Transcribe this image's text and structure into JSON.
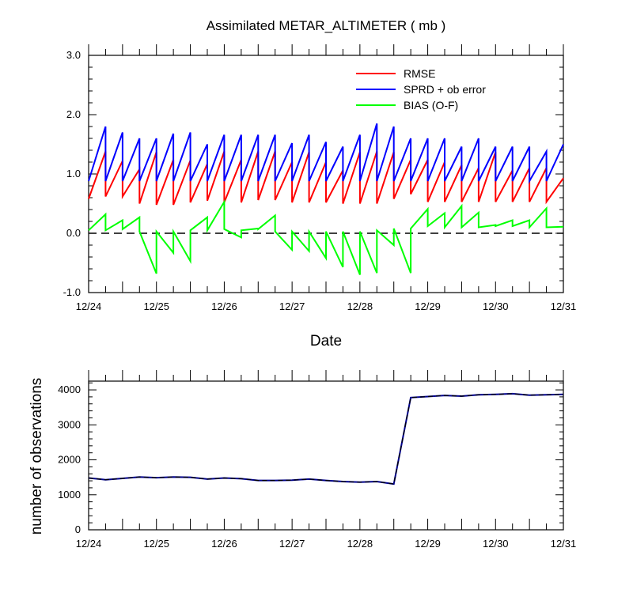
{
  "chart_data": [
    {
      "type": "line",
      "title": "Assimilated METAR_ALTIMETER ( mb )",
      "xlabel": "Date",
      "ylabel": "",
      "x_ticks": [
        "12/24",
        "12/25",
        "12/26",
        "12/27",
        "12/28",
        "12/29",
        "12/30",
        "12/31"
      ],
      "y_ticks": [
        "-1.0",
        "0.0",
        "1.0",
        "2.0",
        "3.0"
      ],
      "xlim": [
        0,
        7
      ],
      "ylim": [
        -1.0,
        3.0
      ],
      "reference_line": {
        "y": 0.0,
        "style": "dashed",
        "color": "#000000"
      },
      "legend_position": "top-right",
      "series": [
        {
          "name": "RMSE",
          "color": "#ff0000",
          "x": [
            0,
            0.25,
            0.25,
            0.5,
            0.5,
            0.75,
            0.75,
            1.0,
            1.0,
            1.25,
            1.25,
            1.5,
            1.5,
            1.75,
            1.75,
            2.0,
            2.0,
            2.25,
            2.25,
            2.5,
            2.5,
            2.75,
            2.75,
            3.0,
            3.0,
            3.25,
            3.25,
            3.5,
            3.5,
            3.75,
            3.75,
            4.0,
            4.0,
            4.25,
            4.25,
            4.5,
            4.5,
            4.75,
            4.75,
            5.0,
            5.0,
            5.25,
            5.25,
            5.5,
            5.5,
            5.75,
            5.75,
            6.0,
            6.0,
            6.25,
            6.25,
            6.5,
            6.5,
            6.75,
            6.75,
            7.0
          ],
          "y": [
            0.58,
            1.38,
            0.62,
            1.22,
            0.62,
            1.08,
            0.5,
            1.37,
            0.48,
            1.24,
            0.48,
            1.23,
            0.52,
            1.17,
            0.55,
            1.38,
            0.52,
            1.24,
            0.52,
            1.38,
            0.56,
            1.38,
            0.56,
            1.2,
            0.52,
            1.37,
            0.52,
            1.2,
            0.52,
            1.06,
            0.5,
            1.37,
            0.5,
            1.38,
            0.5,
            1.37,
            0.58,
            1.24,
            0.66,
            1.24,
            0.53,
            1.2,
            0.53,
            1.15,
            0.53,
            1.1,
            0.53,
            1.37,
            0.53,
            1.06,
            0.53,
            1.1,
            0.53,
            1.1,
            0.53,
            0.93
          ]
        },
        {
          "name": "SPRD + ob error",
          "color": "#0000ff",
          "x": [
            0,
            0.25,
            0.25,
            0.5,
            0.5,
            0.75,
            0.75,
            1.0,
            1.0,
            1.25,
            1.25,
            1.5,
            1.5,
            1.75,
            1.75,
            2.0,
            2.0,
            2.25,
            2.25,
            2.5,
            2.5,
            2.75,
            2.75,
            3.0,
            3.0,
            3.25,
            3.25,
            3.5,
            3.5,
            3.75,
            3.75,
            4.0,
            4.0,
            4.25,
            4.25,
            4.5,
            4.5,
            4.75,
            4.75,
            5.0,
            5.0,
            5.25,
            5.25,
            5.5,
            5.5,
            5.75,
            5.75,
            6.0,
            6.0,
            6.25,
            6.25,
            6.5,
            6.5,
            6.75,
            6.75,
            7.0
          ],
          "y": [
            0.88,
            1.8,
            0.88,
            1.7,
            0.88,
            1.6,
            0.88,
            1.6,
            0.88,
            1.68,
            0.88,
            1.7,
            0.88,
            1.5,
            0.88,
            1.66,
            0.88,
            1.66,
            0.88,
            1.66,
            0.88,
            1.66,
            0.88,
            1.52,
            0.88,
            1.66,
            0.88,
            1.54,
            0.88,
            1.46,
            0.88,
            1.66,
            0.88,
            1.85,
            0.88,
            1.8,
            0.88,
            1.6,
            0.88,
            1.6,
            0.88,
            1.6,
            0.88,
            1.46,
            0.88,
            1.6,
            0.88,
            1.46,
            0.88,
            1.46,
            0.88,
            1.46,
            0.88,
            1.38,
            0.88,
            1.5
          ]
        },
        {
          "name": "BIAS (O-F)",
          "color": "#00ff00",
          "x": [
            0,
            0.25,
            0.25,
            0.5,
            0.5,
            0.75,
            0.75,
            1.0,
            1.0,
            1.25,
            1.25,
            1.5,
            1.5,
            1.75,
            1.75,
            2.0,
            2.0,
            2.25,
            2.25,
            2.5,
            2.5,
            2.75,
            2.75,
            3.0,
            3.0,
            3.25,
            3.25,
            3.5,
            3.5,
            3.75,
            3.75,
            4.0,
            4.0,
            4.25,
            4.25,
            4.5,
            4.5,
            4.75,
            4.75,
            5.0,
            5.0,
            5.25,
            5.25,
            5.5,
            5.5,
            5.75,
            5.75,
            6.0,
            6.0,
            6.25,
            6.25,
            6.5,
            6.5,
            6.75,
            6.75,
            7.0
          ],
          "y": [
            0.05,
            0.32,
            0.05,
            0.22,
            0.07,
            0.27,
            0.03,
            -0.68,
            0.03,
            -0.33,
            0.03,
            -0.47,
            0.05,
            0.27,
            0.05,
            0.53,
            0.07,
            -0.07,
            0.05,
            0.08,
            0.07,
            0.3,
            0.03,
            -0.28,
            0.03,
            -0.3,
            0.03,
            -0.42,
            0.03,
            -0.57,
            0.03,
            -0.7,
            0.03,
            -0.67,
            0.05,
            -0.2,
            0.08,
            -0.67,
            0.08,
            0.41,
            0.12,
            0.34,
            0.1,
            0.46,
            0.1,
            0.35,
            0.1,
            0.14,
            0.12,
            0.22,
            0.12,
            0.22,
            0.1,
            0.42,
            0.1,
            0.11
          ]
        }
      ]
    },
    {
      "type": "line",
      "title": "",
      "xlabel": "",
      "ylabel": "number of observations",
      "x_ticks": [
        "12/24",
        "12/25",
        "12/26",
        "12/27",
        "12/28",
        "12/29",
        "12/30",
        "12/31"
      ],
      "y_ticks": [
        "0",
        "1000",
        "2000",
        "3000",
        "4000"
      ],
      "xlim": [
        0,
        7
      ],
      "ylim": [
        0,
        4250
      ],
      "series": [
        {
          "name": "",
          "color": "#00008b",
          "dashed_overlay_color": "#000000",
          "x": [
            0,
            0.25,
            0.5,
            0.75,
            1.0,
            1.25,
            1.5,
            1.75,
            2.0,
            2.25,
            2.5,
            2.75,
            3.0,
            3.25,
            3.5,
            3.75,
            4.0,
            4.25,
            4.5,
            4.75,
            5.0,
            5.25,
            5.5,
            5.75,
            6.0,
            6.25,
            6.5,
            6.75,
            7.0
          ],
          "y": [
            1480,
            1430,
            1470,
            1510,
            1490,
            1510,
            1500,
            1450,
            1480,
            1460,
            1410,
            1410,
            1420,
            1450,
            1410,
            1380,
            1360,
            1380,
            1310,
            3780,
            3810,
            3840,
            3820,
            3860,
            3870,
            3890,
            3850,
            3860,
            3870
          ]
        }
      ]
    }
  ]
}
